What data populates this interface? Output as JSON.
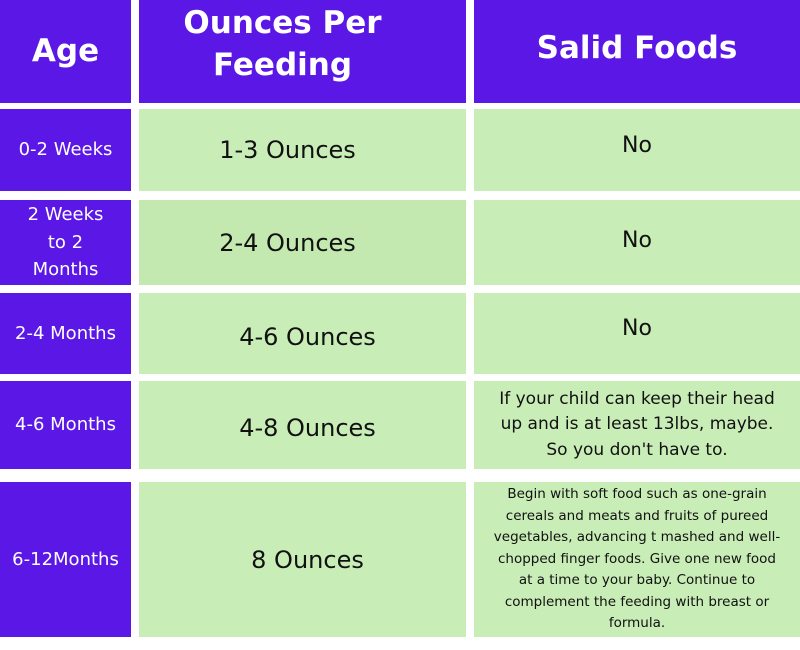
{
  "headers": {
    "age": "Age",
    "ounces": "Ounces Per Feeding",
    "solid": "Salid Foods"
  },
  "rows": [
    {
      "age": "0-2 Weeks",
      "ounces": "1-3 Ounces",
      "solid": "No"
    },
    {
      "age": "2 Weeks to 2 Months",
      "ounces": "2-4 Ounces",
      "solid": "No"
    },
    {
      "age": "2-4 Months",
      "ounces": "4-6 Ounces",
      "solid": "No"
    },
    {
      "age": "4-6 Months",
      "ounces": "4-8 Ounces",
      "solid": "If your child can keep their head up and is at least 13lbs, maybe. So you don't have to."
    },
    {
      "age": "6-12Months",
      "ounces": "8 Ounces",
      "solid": "Begin with soft food such as one-grain cereals and meats and fruits of pureed vegetables, advancing t mashed and well-chopped finger foods. Give one new food at a time to your baby. Continue to complement the feeding with breast or formula."
    }
  ],
  "colors": {
    "header_bg": "#5a17e6",
    "age_bg": "#5a17e6",
    "cell_bg": "#c9edb7"
  }
}
